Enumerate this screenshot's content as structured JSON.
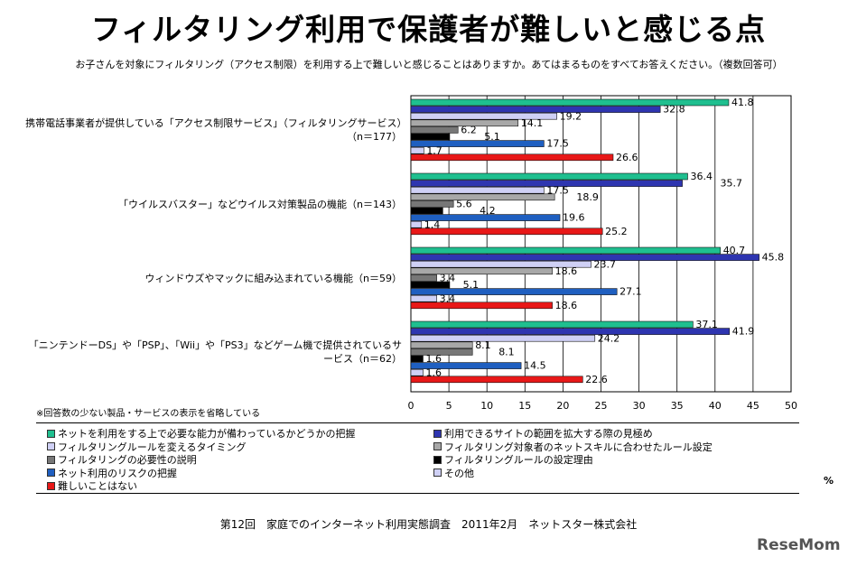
{
  "title": "フィルタリング利用で保護者が難しいと感じる点",
  "subtitle": "お子さんを対象にフィルタリング（アクセス制限）を利用する上で難しいと感じることはありますか。あてはまるものをすべてお答えください。（複数回答可）",
  "note": "※回答数の少ない製品・サービスの表示を省略している",
  "unit": "%",
  "footer": "第12回　家庭でのインターネット利用実態調査　2011年2月　ネットスター株式会社",
  "logo": "ReseMom",
  "chart_data": {
    "type": "bar",
    "orientation": "horizontal",
    "xlim": [
      0,
      50
    ],
    "ticks": [
      "0",
      "5",
      "10",
      "15",
      "20",
      "25",
      "30",
      "35",
      "40",
      "45",
      "50"
    ],
    "grid": true,
    "legend_position": "bottom",
    "categories": [
      "携帯電話事業者が提供している「アクセス制限サービス」（フィルタリングサービス）（n＝177）",
      "「ウイルスバスター」などウイルス対策製品の機能（n＝143）",
      "ウィンドウズやマックに組み込まれている機能（n＝59）",
      "「ニンテンドーDS」や「PSP」、「Wii」や「PS3」などゲーム機で提供されているサービス（n＝62）"
    ],
    "series": [
      {
        "name": "ネットを利用をする上で必要な能力が備わっているかどうかの把握",
        "color": "#1fbf8f",
        "values": [
          41.8,
          36.4,
          40.7,
          37.1
        ]
      },
      {
        "name": "利用できるサイトの範囲を拡大する際の見極め",
        "color": "#2e35b0",
        "values": [
          32.8,
          35.7,
          45.8,
          41.9
        ]
      },
      {
        "name": "フィルタリングルールを変えるタイミング",
        "color": "#cfd0f5",
        "values": [
          19.2,
          17.5,
          23.7,
          24.2
        ]
      },
      {
        "name": "フィルタリング対象者のネットスキルに合わせたルール設定",
        "color": "#a8a8a8",
        "values": [
          14.1,
          18.9,
          18.6,
          8.1
        ]
      },
      {
        "name": "フィルタリングの必要性の説明",
        "color": "#777777",
        "values": [
          6.2,
          5.6,
          3.4,
          8.1
        ]
      },
      {
        "name": "フィルタリングルールの設定理由",
        "color": "#000000",
        "values": [
          5.1,
          4.2,
          5.1,
          1.6
        ]
      },
      {
        "name": "ネット利用のリスクの把握",
        "color": "#1f5fc0",
        "values": [
          17.5,
          19.6,
          27.1,
          14.5
        ]
      },
      {
        "name": "その他",
        "color": "#cfd0f5",
        "values": [
          1.7,
          1.4,
          3.4,
          1.6
        ]
      },
      {
        "name": "難しいことはない",
        "color": "#e81818",
        "values": [
          26.6,
          25.2,
          18.6,
          22.6
        ]
      }
    ]
  }
}
